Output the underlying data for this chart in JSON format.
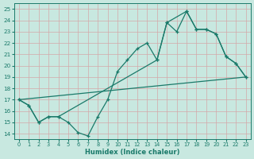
{
  "bg_color": "#c8e8e0",
  "grid_color": "#e0b8b8",
  "line_color": "#1a7a6a",
  "xlabel": "Humidex (Indice chaleur)",
  "ylabel_ticks": [
    14,
    15,
    16,
    17,
    18,
    19,
    20,
    21,
    22,
    23,
    24,
    25
  ],
  "xlim": [
    -0.5,
    23.5
  ],
  "ylim": [
    13.5,
    25.5
  ],
  "line1_x": [
    0,
    1,
    2,
    3,
    4,
    5,
    6,
    7,
    8,
    9,
    10,
    11,
    12,
    13,
    14,
    15,
    16,
    17,
    18,
    19,
    20,
    21,
    22,
    23
  ],
  "line1_y": [
    17.0,
    16.5,
    15.0,
    15.5,
    15.5,
    15.0,
    14.1,
    13.8,
    15.5,
    17.0,
    19.5,
    20.5,
    21.5,
    22.0,
    20.5,
    23.8,
    23.0,
    24.8,
    23.2,
    23.2,
    22.8,
    20.8,
    20.2,
    19.0
  ],
  "line2_x": [
    0,
    1,
    2,
    3,
    4,
    14,
    15,
    17,
    18,
    19,
    20,
    21,
    22,
    23
  ],
  "line2_y": [
    17.0,
    16.5,
    15.0,
    15.5,
    15.5,
    20.5,
    23.8,
    24.8,
    23.2,
    23.2,
    22.8,
    20.8,
    20.2,
    19.0
  ],
  "line3_x": [
    0,
    23
  ],
  "line3_y": [
    17.0,
    19.0
  ]
}
